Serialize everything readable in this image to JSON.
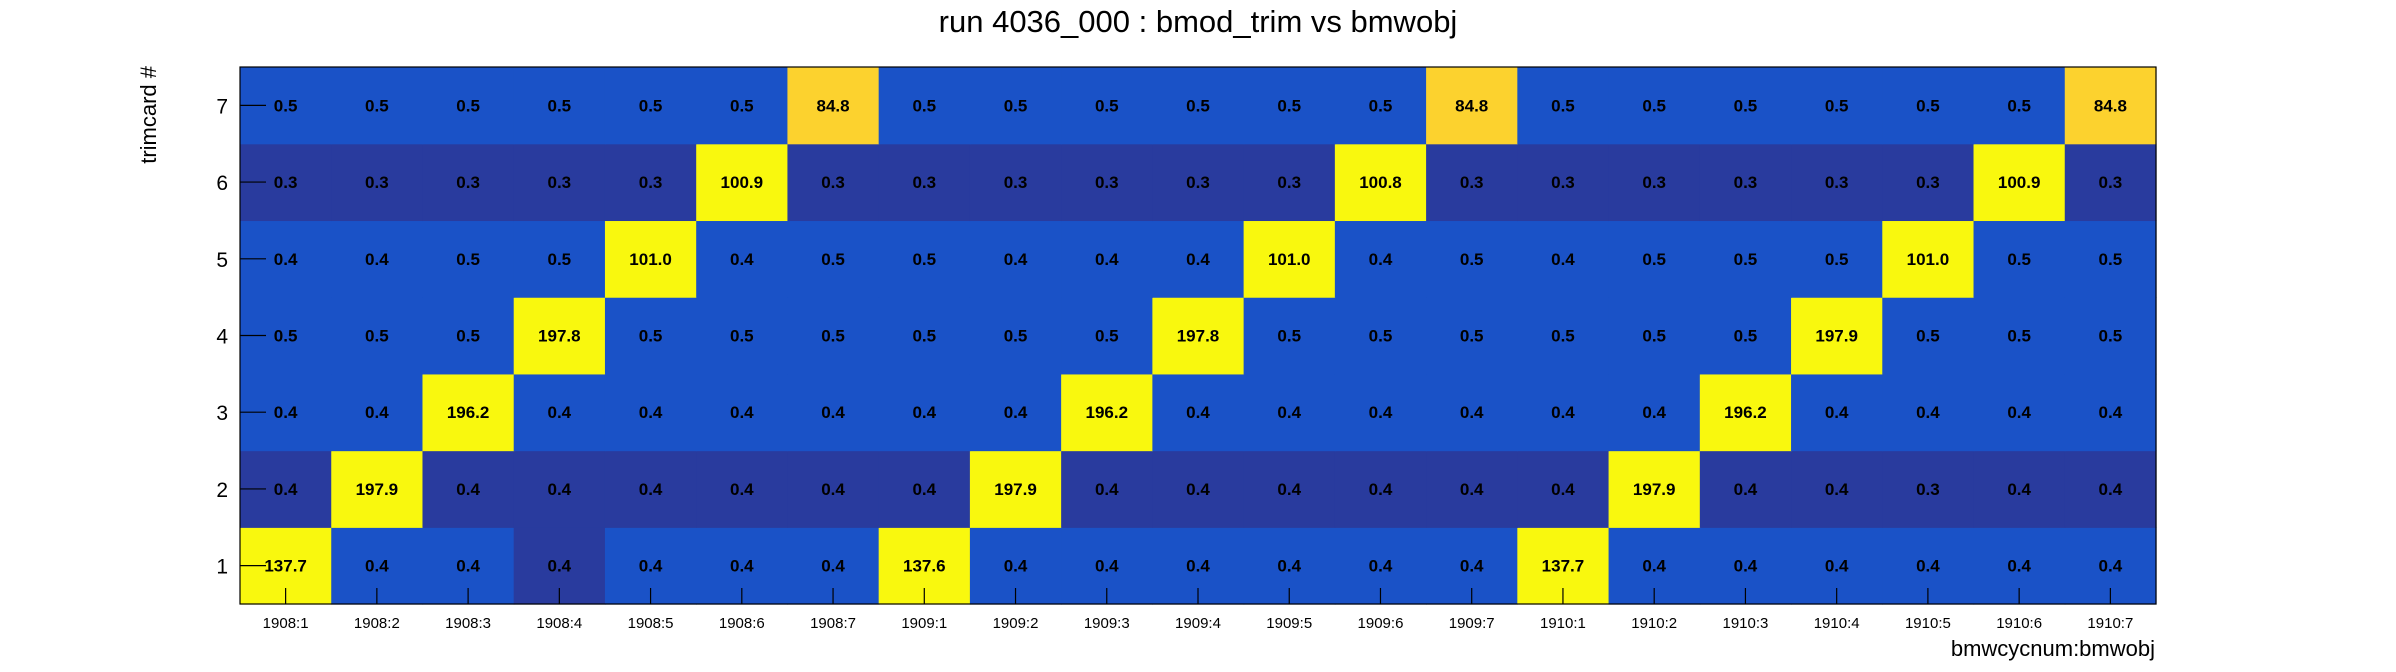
{
  "chart_data": {
    "type": "heatmap",
    "title": "run 4036_000 : bmod_trim vs bmwobj",
    "xlabel": "bmwcycnum:bmwobj",
    "ylabel": "trimcard #",
    "x_categories": [
      "1908:1",
      "1908:2",
      "1908:3",
      "1908:4",
      "1908:5",
      "1908:6",
      "1908:7",
      "1909:1",
      "1909:2",
      "1909:3",
      "1909:4",
      "1909:5",
      "1909:6",
      "1909:7",
      "1910:1",
      "1910:2",
      "1910:3",
      "1910:4",
      "1910:5",
      "1910:6",
      "1910:7"
    ],
    "y_categories": [
      "1",
      "2",
      "3",
      "4",
      "5",
      "6",
      "7"
    ],
    "z_labels": [
      [
        "137.7",
        "0.4",
        "0.4",
        "0.4",
        "0.4",
        "0.4",
        "0.4",
        "137.6",
        "0.4",
        "0.4",
        "0.4",
        "0.4",
        "0.4",
        "0.4",
        "137.7",
        "0.4",
        "0.4",
        "0.4",
        "0.4",
        "0.4",
        "0.4"
      ],
      [
        "0.4",
        "197.9",
        "0.4",
        "0.4",
        "0.4",
        "0.4",
        "0.4",
        "0.4",
        "197.9",
        "0.4",
        "0.4",
        "0.4",
        "0.4",
        "0.4",
        "0.4",
        "197.9",
        "0.4",
        "0.4",
        "0.3",
        "0.4",
        "0.4"
      ],
      [
        "0.4",
        "0.4",
        "196.2",
        "0.4",
        "0.4",
        "0.4",
        "0.4",
        "0.4",
        "0.4",
        "196.2",
        "0.4",
        "0.4",
        "0.4",
        "0.4",
        "0.4",
        "0.4",
        "196.2",
        "0.4",
        "0.4",
        "0.4",
        "0.4"
      ],
      [
        "0.5",
        "0.5",
        "0.5",
        "197.8",
        "0.5",
        "0.5",
        "0.5",
        "0.5",
        "0.5",
        "0.5",
        "197.8",
        "0.5",
        "0.5",
        "0.5",
        "0.5",
        "0.5",
        "0.5",
        "197.9",
        "0.5",
        "0.5",
        "0.5"
      ],
      [
        "0.4",
        "0.4",
        "0.5",
        "0.5",
        "101.0",
        "0.4",
        "0.5",
        "0.5",
        "0.4",
        "0.4",
        "0.4",
        "101.0",
        "0.4",
        "0.5",
        "0.4",
        "0.5",
        "0.5",
        "0.5",
        "101.0",
        "0.5",
        "0.5"
      ],
      [
        "0.3",
        "0.3",
        "0.3",
        "0.3",
        "0.3",
        "100.9",
        "0.3",
        "0.3",
        "0.3",
        "0.3",
        "0.3",
        "0.3",
        "100.8",
        "0.3",
        "0.3",
        "0.3",
        "0.3",
        "0.3",
        "0.3",
        "100.9",
        "0.3"
      ],
      [
        "0.5",
        "0.5",
        "0.5",
        "0.5",
        "0.5",
        "0.5",
        "84.8",
        "0.5",
        "0.5",
        "0.5",
        "0.5",
        "0.5",
        "0.5",
        "84.8",
        "0.5",
        "0.5",
        "0.5",
        "0.5",
        "0.5",
        "0.5",
        "84.8"
      ]
    ],
    "colors": {
      "high": "#f9f80e",
      "mid": "#fcd22e",
      "low": "#1a52c7",
      "lowest": "#293b9e",
      "frame": "#000000",
      "background": "#ffffff"
    },
    "color_levels": [
      [
        "high",
        "low",
        "low",
        "lowest",
        "low",
        "low",
        "low",
        "high",
        "low",
        "low",
        "low",
        "low",
        "low",
        "low",
        "high",
        "low",
        "low",
        "low",
        "low",
        "low",
        "low"
      ],
      [
        "lowest",
        "high",
        "lowest",
        "lowest",
        "lowest",
        "lowest",
        "lowest",
        "lowest",
        "high",
        "lowest",
        "lowest",
        "lowest",
        "lowest",
        "lowest",
        "lowest",
        "high",
        "lowest",
        "lowest",
        "lowest",
        "lowest",
        "lowest"
      ],
      [
        "low",
        "low",
        "high",
        "low",
        "low",
        "low",
        "low",
        "low",
        "low",
        "high",
        "low",
        "low",
        "low",
        "low",
        "low",
        "low",
        "high",
        "low",
        "low",
        "low",
        "low"
      ],
      [
        "low",
        "low",
        "low",
        "high",
        "low",
        "low",
        "low",
        "low",
        "low",
        "low",
        "high",
        "low",
        "low",
        "low",
        "low",
        "low",
        "low",
        "high",
        "low",
        "low",
        "low"
      ],
      [
        "low",
        "low",
        "low",
        "low",
        "high",
        "low",
        "low",
        "low",
        "low",
        "low",
        "low",
        "high",
        "low",
        "low",
        "low",
        "low",
        "low",
        "low",
        "high",
        "low",
        "low"
      ],
      [
        "lowest",
        "lowest",
        "lowest",
        "lowest",
        "lowest",
        "high",
        "lowest",
        "lowest",
        "lowest",
        "lowest",
        "lowest",
        "lowest",
        "high",
        "lowest",
        "lowest",
        "lowest",
        "lowest",
        "lowest",
        "lowest",
        "high",
        "lowest"
      ],
      [
        "low",
        "low",
        "low",
        "low",
        "low",
        "low",
        "mid",
        "low",
        "low",
        "low",
        "low",
        "low",
        "low",
        "mid",
        "low",
        "low",
        "low",
        "low",
        "low",
        "low",
        "mid"
      ]
    ]
  }
}
